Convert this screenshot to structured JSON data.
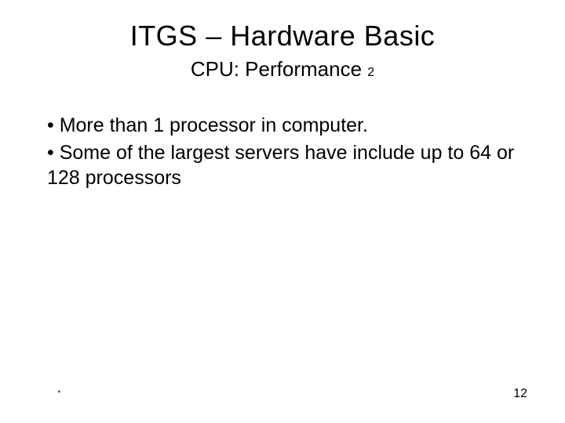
{
  "title": "ITGS – Hardware Basic",
  "subtitle_main": "CPU: Performance ",
  "subtitle_suffix": "2",
  "bullets": [
    "• More than 1 processor in computer.",
    "• Some of the largest servers have include up to 64 or 128 processors"
  ],
  "page_number": "12",
  "corner_glyph": "◔",
  "colors": {
    "background": "#ffffff",
    "text": "#000000"
  },
  "typography": {
    "title_fontsize": 36,
    "subtitle_fontsize": 26,
    "body_fontsize": 25,
    "pagenum_fontsize": 16
  }
}
